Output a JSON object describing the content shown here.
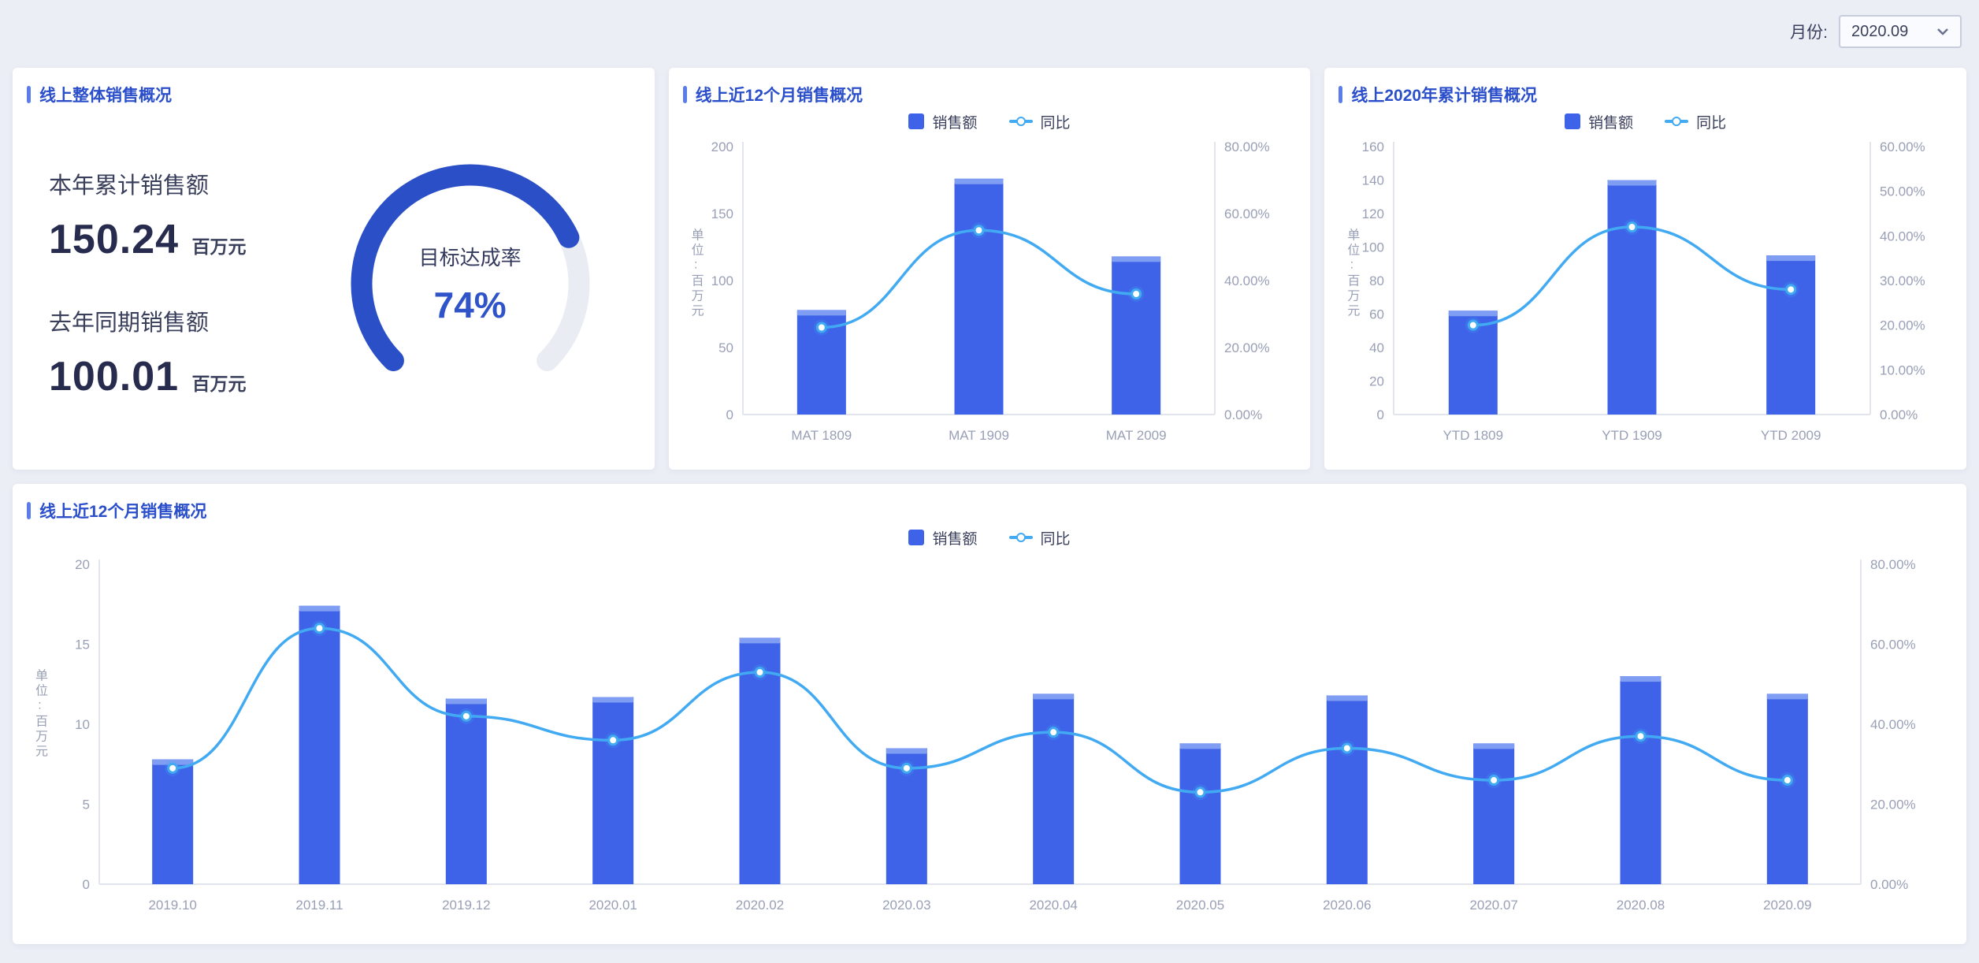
{
  "page": {
    "filter_label": "月份:",
    "filter_value": "2020.09"
  },
  "colors": {
    "page_bg": "#eceef5",
    "card_bg": "#ffffff",
    "title_blue": "#2b4ecb",
    "accent_blue": "#5b7ceb",
    "bar": "#3e63e8",
    "bar_cap": "#7f9df2",
    "line": "#41aaf2",
    "gauge_fill": "#2a4fc6",
    "gauge_track": "#e9ecf3",
    "axis_line": "#e2e5ee",
    "tick_text": "#99a0b6",
    "kpi_text": "#272b4d"
  },
  "panels": {
    "overview": {
      "title": "线上整体销售概况",
      "kpis": [
        {
          "label": "本年累计销售额",
          "value": "150.24",
          "unit": "百万元"
        },
        {
          "label": "去年同期销售额",
          "value": "100.01",
          "unit": "百万元"
        }
      ],
      "gauge": {
        "label": "目标达成率",
        "value": 74,
        "value_text": "74%"
      }
    }
  },
  "chart_data": [
    {
      "type": "bar+line",
      "title": "线上近12个月销售概况",
      "categories": [
        "MAT 1809",
        "MAT 1909",
        "MAT 2009"
      ],
      "series": [
        {
          "name": "销售额",
          "type": "bar",
          "yaxis": "left",
          "values": [
            78,
            176,
            118
          ]
        },
        {
          "name": "同比",
          "type": "line",
          "yaxis": "right",
          "values": [
            26,
            55,
            36
          ]
        }
      ],
      "ylabel_left": "单位:百万元",
      "yaxis_left": {
        "min": 0,
        "max": 200,
        "step": 50
      },
      "yaxis_right": {
        "min": 0,
        "max": 80,
        "step": 20,
        "format": "percent"
      },
      "legend_position": "top",
      "grid": false
    },
    {
      "type": "bar+line",
      "title": "线上2020年累计销售概况",
      "categories": [
        "YTD 1809",
        "YTD 1909",
        "YTD 2009"
      ],
      "series": [
        {
          "name": "销售额",
          "type": "bar",
          "yaxis": "left",
          "values": [
            62,
            140,
            95
          ]
        },
        {
          "name": "同比",
          "type": "line",
          "yaxis": "right",
          "values": [
            20,
            42,
            28
          ]
        }
      ],
      "ylabel_left": "单位:百万元",
      "yaxis_left": {
        "min": 0,
        "max": 160,
        "step": 20
      },
      "yaxis_right": {
        "min": 0,
        "max": 60,
        "step": 10,
        "format": "percent"
      },
      "legend_position": "top",
      "grid": false
    },
    {
      "type": "bar+line",
      "title": "线上近12个月销售概况",
      "categories": [
        "2019.10",
        "2019.11",
        "2019.12",
        "2020.01",
        "2020.02",
        "2020.03",
        "2020.04",
        "2020.05",
        "2020.06",
        "2020.07",
        "2020.08",
        "2020.09"
      ],
      "series": [
        {
          "name": "销售额",
          "type": "bar",
          "yaxis": "left",
          "values": [
            7.8,
            17.4,
            11.6,
            11.7,
            15.4,
            8.5,
            11.9,
            8.8,
            11.8,
            8.8,
            13.0,
            11.9
          ]
        },
        {
          "name": "同比",
          "type": "line",
          "yaxis": "right",
          "values": [
            29,
            64,
            42,
            36,
            53,
            29,
            38,
            23,
            34,
            26,
            37,
            26
          ]
        }
      ],
      "ylabel_left": "单位:百万元",
      "yaxis_left": {
        "min": 0,
        "max": 20,
        "step": 5
      },
      "yaxis_right": {
        "min": 0,
        "max": 80,
        "step": 20,
        "format": "percent"
      },
      "legend_position": "top",
      "grid": false
    }
  ]
}
